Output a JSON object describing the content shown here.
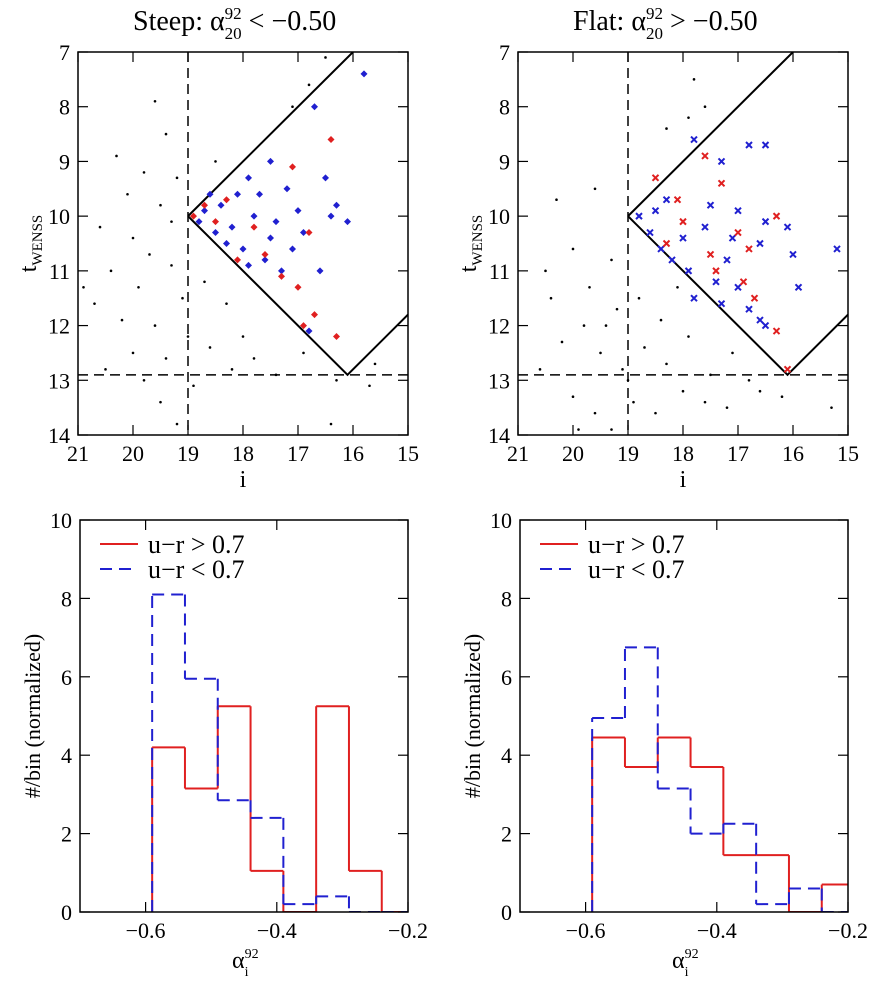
{
  "chart_data": [
    {
      "type": "scatter",
      "title": {
        "prefix": "Steep: α",
        "sup": "92",
        "sub": "20",
        "suffix": " < −0.50"
      },
      "xlabel": "i",
      "ylabel": {
        "main": "t",
        "sub": "WENSS"
      },
      "xlim": [
        21,
        15
      ],
      "ylim": [
        14,
        7
      ],
      "xticks": [
        21,
        20,
        19,
        18,
        17,
        16,
        15
      ],
      "yticks": [
        7,
        8,
        9,
        10,
        11,
        12,
        13,
        14
      ],
      "cut_i": 19,
      "cut_t": 12.9,
      "boundary": [
        {
          "x": [
            19,
            16
          ],
          "y": [
            10,
            7
          ]
        },
        {
          "x": [
            19,
            16.1,
            15
          ],
          "y": [
            10,
            12.9,
            11.8
          ]
        }
      ],
      "series": [
        {
          "color": "#000000",
          "marker": "dot",
          "x": [
            20.3,
            19.6,
            19.4,
            19.8,
            20.1,
            19.5,
            19.2,
            20.6,
            20.0,
            19.7,
            19.3,
            20.4,
            19.9,
            19.1,
            20.7,
            20.2,
            19.6,
            19.0,
            20.0,
            19.4,
            18.6,
            18.2,
            17.8,
            19.8,
            19.5,
            19.2,
            18.9,
            17.4,
            16.9,
            16.3,
            15.7,
            15.6,
            16.5,
            16.8,
            17.9,
            18.3,
            18.0,
            20.5,
            20.9,
            19.3,
            18.7,
            16.4,
            18.5,
            17.1
          ],
          "y": [
            8.9,
            7.9,
            8.5,
            9.2,
            9.6,
            9.8,
            9.3,
            10.2,
            10.4,
            10.7,
            10.9,
            11.0,
            11.3,
            11.5,
            11.6,
            11.9,
            12.0,
            12.2,
            12.5,
            12.6,
            12.4,
            12.8,
            12.6,
            13.0,
            13.4,
            13.8,
            13.1,
            12.9,
            12.5,
            13.0,
            13.1,
            12.7,
            7.1,
            7.6,
            10.9,
            11.6,
            12.2,
            12.8,
            11.3,
            10.1,
            11.2,
            13.8,
            9.0,
            8.0
          ]
        },
        {
          "color": "#2020d0",
          "marker": "diamond",
          "x": [
            15.8,
            16.7,
            17.5,
            16.5,
            16.3,
            16.1,
            17.2,
            17.9,
            18.1,
            18.4,
            18.7,
            18.2,
            17.8,
            17.5,
            17.1,
            17.6,
            18.0,
            18.3,
            17.3,
            16.9,
            16.6,
            18.5,
            18.8,
            17.0,
            16.8,
            17.7,
            18.6,
            16.4,
            17.4,
            17.9
          ],
          "y": [
            7.4,
            8.0,
            9.0,
            9.3,
            9.8,
            10.1,
            9.5,
            9.3,
            9.6,
            9.8,
            9.9,
            10.2,
            10.0,
            10.4,
            10.6,
            10.8,
            10.6,
            10.5,
            11.0,
            10.3,
            11.0,
            10.3,
            10.1,
            9.9,
            12.1,
            9.6,
            9.6,
            10.0,
            10.1,
            10.9
          ]
        },
        {
          "color": "#e02020",
          "marker": "diamond",
          "x": [
            16.4,
            17.1,
            18.5,
            18.7,
            18.1,
            17.6,
            17.3,
            16.8,
            17.0,
            16.7,
            16.9,
            16.3,
            18.3,
            17.8,
            18.9
          ],
          "y": [
            8.6,
            9.1,
            10.1,
            9.8,
            10.8,
            10.7,
            11.1,
            10.3,
            11.3,
            11.8,
            12.0,
            12.2,
            9.7,
            10.2,
            10.0
          ]
        }
      ]
    },
    {
      "type": "scatter",
      "title": {
        "prefix": "Flat: α",
        "sup": "92",
        "sub": "20",
        "suffix": " > −0.50"
      },
      "xlabel": "i",
      "ylabel": {
        "main": "t",
        "sub": "WENSS"
      },
      "xlim": [
        21,
        15
      ],
      "ylim": [
        14,
        7
      ],
      "xticks": [
        21,
        20,
        19,
        18,
        17,
        16,
        15
      ],
      "yticks": [
        7,
        8,
        9,
        10,
        11,
        12,
        13,
        14
      ],
      "cut_i": 19,
      "cut_t": 12.9,
      "boundary": [
        {
          "x": [
            19,
            16
          ],
          "y": [
            10,
            7
          ]
        },
        {
          "x": [
            19,
            16.1,
            15
          ],
          "y": [
            10,
            12.9,
            11.8
          ]
        }
      ],
      "series": [
        {
          "color": "#000000",
          "marker": "dot",
          "x": [
            20.3,
            19.6,
            19.3,
            20.0,
            19.7,
            20.4,
            19.2,
            19.8,
            20.2,
            19.5,
            19.1,
            18.7,
            18.3,
            17.9,
            17.5,
            17.1,
            16.6,
            20.0,
            19.6,
            19.3,
            18.9,
            18.5,
            18.0,
            17.6,
            17.2,
            15.3,
            17.8,
            17.9,
            18.3,
            17.6,
            19.4,
            18.8,
            18.4,
            20.5,
            19.0,
            18.1,
            20.6,
            19.9,
            16.8,
            16.2
          ],
          "y": [
            9.7,
            9.5,
            10.8,
            10.6,
            11.3,
            11.5,
            11.7,
            12.0,
            12.3,
            12.5,
            12.8,
            12.4,
            12.7,
            12.2,
            12.9,
            12.5,
            13.2,
            13.3,
            13.6,
            13.9,
            13.4,
            13.6,
            13.2,
            13.4,
            13.5,
            13.5,
            7.5,
            8.2,
            8.4,
            8.0,
            12.0,
            11.5,
            11.9,
            11.0,
            13.0,
            11.3,
            12.8,
            13.9,
            13.0,
            13.3
          ]
        },
        {
          "color": "#2020d0",
          "marker": "cross",
          "x": [
            16.5,
            16.8,
            17.3,
            17.8,
            18.3,
            18.5,
            18.8,
            17.5,
            17.0,
            16.5,
            16.1,
            15.2,
            16.0,
            16.6,
            17.1,
            17.6,
            18.0,
            18.2,
            17.9,
            17.4,
            17.0,
            16.8,
            17.3,
            16.5,
            17.8,
            18.4,
            18.6,
            17.2,
            15.9,
            16.6
          ],
          "y": [
            8.7,
            8.7,
            9.0,
            8.6,
            9.7,
            9.9,
            10.0,
            9.8,
            9.9,
            10.1,
            10.2,
            10.6,
            10.7,
            10.5,
            10.4,
            10.2,
            10.4,
            10.8,
            11.0,
            11.2,
            11.3,
            11.7,
            11.6,
            12.0,
            11.5,
            10.6,
            10.3,
            10.8,
            11.3,
            11.9
          ]
        },
        {
          "color": "#e02020",
          "marker": "cross",
          "x": [
            17.6,
            18.5,
            17.3,
            18.1,
            16.3,
            17.0,
            16.8,
            17.5,
            18.3,
            16.9,
            17.4,
            16.7,
            16.3,
            16.1,
            18.0
          ],
          "y": [
            8.9,
            9.3,
            9.4,
            9.7,
            10.0,
            10.3,
            10.6,
            10.7,
            10.5,
            11.2,
            11.0,
            11.5,
            12.1,
            12.8,
            10.1
          ]
        }
      ]
    },
    {
      "type": "histogram",
      "xlabel": {
        "main": "α",
        "sup": "92",
        "sub": "i"
      },
      "ylabel": "#/bin (normalized)",
      "xlim": [
        -0.7,
        -0.2
      ],
      "ylim": [
        0,
        10
      ],
      "xticks": [
        {
          "value": -0.6,
          "label": "−0.6"
        },
        {
          "value": -0.4,
          "label": "−0.4"
        },
        {
          "value": -0.2,
          "label": "−0.2"
        }
      ],
      "yticks": [
        0,
        2,
        4,
        6,
        8,
        10
      ],
      "bins": [
        -0.59,
        -0.54,
        -0.49,
        -0.44,
        -0.39,
        -0.34,
        -0.29,
        -0.24,
        -0.19
      ],
      "series": [
        {
          "name": "u−r > 0.7",
          "color": "#e02020",
          "dash": false,
          "values": [
            4.2,
            3.15,
            5.25,
            1.05,
            0,
            5.25,
            1.05,
            0
          ]
        },
        {
          "name": "u−r < 0.7",
          "color": "#2020d0",
          "dash": true,
          "values": [
            8.1,
            5.95,
            2.85,
            2.4,
            0.2,
            0.4,
            0,
            0
          ]
        }
      ]
    },
    {
      "type": "histogram",
      "xlabel": {
        "main": "α",
        "sup": "92",
        "sub": "i"
      },
      "ylabel": "#/bin (normalized)",
      "xlim": [
        -0.7,
        -0.2
      ],
      "ylim": [
        0,
        10
      ],
      "xticks": [
        {
          "value": -0.6,
          "label": "−0.6"
        },
        {
          "value": -0.4,
          "label": "−0.4"
        },
        {
          "value": -0.2,
          "label": "−0.2"
        }
      ],
      "yticks": [
        0,
        2,
        4,
        6,
        8,
        10
      ],
      "bins": [
        -0.59,
        -0.54,
        -0.49,
        -0.44,
        -0.39,
        -0.34,
        -0.29,
        -0.24,
        -0.19
      ],
      "series": [
        {
          "name": "u−r > 0.7",
          "color": "#e02020",
          "dash": false,
          "values": [
            4.45,
            3.7,
            4.45,
            3.7,
            1.45,
            1.45,
            0,
            0.7
          ]
        },
        {
          "name": "u−r < 0.7",
          "color": "#2020d0",
          "dash": true,
          "values": [
            4.95,
            6.75,
            3.15,
            2.0,
            2.25,
            0.2,
            0.6,
            0
          ]
        }
      ]
    }
  ]
}
